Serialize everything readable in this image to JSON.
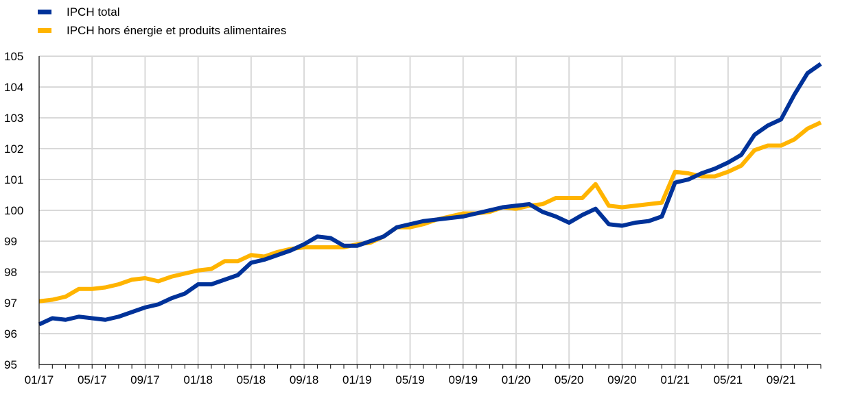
{
  "colors": {
    "total": "#003299",
    "core": "#FFB400",
    "grid": "#d9d9d9",
    "axis": "#000000"
  },
  "chart_data": {
    "type": "line",
    "title": "",
    "xlabel": "",
    "ylabel": "",
    "ylim": [
      95,
      105
    ],
    "yticks": [
      "95",
      "96",
      "97",
      "98",
      "99",
      "100",
      "101",
      "102",
      "103",
      "104",
      "105"
    ],
    "xticks": [
      "01/17",
      "05/17",
      "09/17",
      "01/18",
      "05/18",
      "09/18",
      "01/19",
      "05/19",
      "09/19",
      "01/20",
      "05/20",
      "09/20",
      "01/21",
      "05/21",
      "09/21"
    ],
    "x": [
      "01/17",
      "02/17",
      "03/17",
      "04/17",
      "05/17",
      "06/17",
      "07/17",
      "08/17",
      "09/17",
      "10/17",
      "11/17",
      "12/17",
      "01/18",
      "02/18",
      "03/18",
      "04/18",
      "05/18",
      "06/18",
      "07/18",
      "08/18",
      "09/18",
      "10/18",
      "11/18",
      "12/18",
      "01/19",
      "02/19",
      "03/19",
      "04/19",
      "05/19",
      "06/19",
      "07/19",
      "08/19",
      "09/19",
      "10/19",
      "11/19",
      "12/19",
      "01/20",
      "02/20",
      "03/20",
      "04/20",
      "05/20",
      "06/20",
      "07/20",
      "08/20",
      "09/20",
      "10/20",
      "11/20",
      "12/20",
      "01/21",
      "02/21",
      "03/21",
      "04/21",
      "05/21",
      "06/21",
      "07/21",
      "08/21",
      "09/21",
      "10/21",
      "11/21",
      "12/21"
    ],
    "grid": true,
    "legend_position": "top-left",
    "series": [
      {
        "name": "IPCH total",
        "color": "#003299",
        "values": [
          96.3,
          96.5,
          96.45,
          96.55,
          96.5,
          96.45,
          96.55,
          96.7,
          96.85,
          96.95,
          97.15,
          97.3,
          97.6,
          97.6,
          97.75,
          97.9,
          98.3,
          98.4,
          98.55,
          98.7,
          98.9,
          99.15,
          99.1,
          98.85,
          98.85,
          99.0,
          99.15,
          99.45,
          99.55,
          99.65,
          99.7,
          99.75,
          99.8,
          99.9,
          100.0,
          100.1,
          100.15,
          100.2,
          99.95,
          99.8,
          99.6,
          99.85,
          100.05,
          99.55,
          99.5,
          99.6,
          99.65,
          99.8,
          100.9,
          101.0,
          101.2,
          101.35,
          101.55,
          101.8,
          102.45,
          102.75,
          102.95,
          103.75,
          104.45,
          104.75
        ]
      },
      {
        "name": "IPCH hors énergie et produits alimentaires",
        "color": "#FFB400",
        "values": [
          97.05,
          97.1,
          97.2,
          97.45,
          97.45,
          97.5,
          97.6,
          97.75,
          97.8,
          97.7,
          97.85,
          97.95,
          98.05,
          98.1,
          98.35,
          98.35,
          98.55,
          98.5,
          98.65,
          98.75,
          98.8,
          98.8,
          98.8,
          98.8,
          98.9,
          98.95,
          99.15,
          99.45,
          99.45,
          99.55,
          99.7,
          99.8,
          99.9,
          99.9,
          99.95,
          100.1,
          100.05,
          100.15,
          100.2,
          100.4,
          100.4,
          100.4,
          100.85,
          100.15,
          100.1,
          100.15,
          100.2,
          100.25,
          101.25,
          101.2,
          101.1,
          101.1,
          101.25,
          101.45,
          101.95,
          102.1,
          102.1,
          102.3,
          102.65,
          102.85
        ]
      }
    ]
  }
}
